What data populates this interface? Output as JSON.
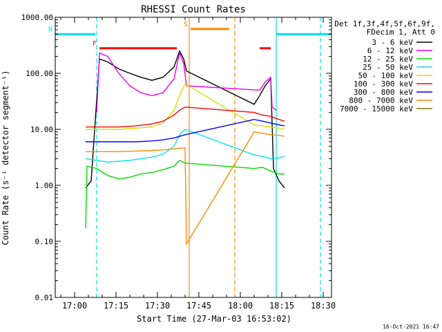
{
  "chart_data": {
    "type": "line",
    "title": "RHESSI Count Rates",
    "xlabel": "Start Time (27-Mar-03 16:53:02)",
    "ylabel": "Count Rate (s⁻¹ detector segment⁻¹)",
    "yscale": "log",
    "xlim": [
      "16:53:00",
      "18:33:00"
    ],
    "ylim": [
      0.01,
      1000
    ],
    "x_ticks": [
      "17:00",
      "17:15",
      "17:30",
      "17:45",
      "18:00",
      "18:15",
      "18:30"
    ],
    "y_ticks": [
      "0.01",
      "0.10",
      "1.00",
      "10.00",
      "100.00",
      "1000.00"
    ],
    "grid": false,
    "legend_position": "top-right outside",
    "legend_header": [
      "Det 1f,3f,4f,5f,6f,9f,",
      "FDecim 1, Att 0"
    ],
    "timestamp": "16-Oct-2021 16:47",
    "series": [
      {
        "name": "3 - 6 keV",
        "color": "#000000",
        "points": [
          [
            "17:04:00",
            0.9
          ],
          [
            "17:06:00",
            1.2
          ],
          [
            "17:09:00",
            180
          ],
          [
            "17:12:00",
            160
          ],
          [
            "17:16:00",
            120
          ],
          [
            "17:20:00",
            100
          ],
          [
            "17:24:00",
            85
          ],
          [
            "17:28:00",
            75
          ],
          [
            "17:32:00",
            85
          ],
          [
            "17:36:00",
            130
          ],
          [
            "17:38:00",
            250
          ],
          [
            "17:39:30",
            180
          ],
          [
            "17:40:30",
            110
          ],
          [
            "18:05:00",
            28
          ],
          [
            "18:07:00",
            40
          ],
          [
            "18:09:00",
            60
          ],
          [
            "18:11:00",
            80
          ],
          [
            "18:12:00",
            2.0
          ],
          [
            "18:14:00",
            1.2
          ],
          [
            "18:16:00",
            0.9
          ]
        ]
      },
      {
        "name": "6 - 12 keV",
        "color": "#ee00ee",
        "points": [
          [
            "17:08:00",
            20
          ],
          [
            "17:09:00",
            230
          ],
          [
            "17:12:00",
            200
          ],
          [
            "17:16:00",
            100
          ],
          [
            "17:20:00",
            60
          ],
          [
            "17:24:00",
            45
          ],
          [
            "17:28:00",
            40
          ],
          [
            "17:32:00",
            45
          ],
          [
            "17:36:00",
            80
          ],
          [
            "17:38:00",
            230
          ],
          [
            "17:39:30",
            150
          ],
          [
            "17:40:30",
            60
          ],
          [
            "18:07:00",
            50
          ],
          [
            "18:09:00",
            70
          ],
          [
            "18:11:00",
            85
          ],
          [
            "18:11:30",
            25
          ],
          [
            "18:13:00",
            22
          ]
        ]
      },
      {
        "name": "12 - 25 keV",
        "color": "#00dd00",
        "points": [
          [
            "17:04:00",
            0.17
          ],
          [
            "17:04:30",
            2.2
          ],
          [
            "17:08:00",
            2.0
          ],
          [
            "17:12:00",
            1.5
          ],
          [
            "17:16:00",
            1.3
          ],
          [
            "17:20:00",
            1.4
          ],
          [
            "17:24:00",
            1.6
          ],
          [
            "17:28:00",
            1.7
          ],
          [
            "17:32:00",
            1.9
          ],
          [
            "17:36:00",
            2.2
          ],
          [
            "17:38:00",
            2.8
          ],
          [
            "17:40:00",
            2.5
          ],
          [
            "18:05:00",
            2.0
          ],
          [
            "18:08:00",
            2.1
          ],
          [
            "18:11:00",
            1.8
          ],
          [
            "18:14:00",
            1.6
          ],
          [
            "18:16:00",
            1.6
          ]
        ]
      },
      {
        "name": "25 - 50 keV",
        "color": "#00e5e5",
        "points": [
          [
            "17:04:00",
            3.0
          ],
          [
            "17:08:00",
            2.8
          ],
          [
            "17:12:00",
            2.6
          ],
          [
            "17:16:00",
            2.7
          ],
          [
            "17:20:00",
            2.8
          ],
          [
            "17:24:00",
            3.0
          ],
          [
            "17:28:00",
            3.2
          ],
          [
            "17:32:00",
            3.6
          ],
          [
            "17:36:00",
            5.0
          ],
          [
            "17:38:00",
            8.0
          ],
          [
            "17:40:00",
            10
          ],
          [
            "18:05:00",
            3.5
          ],
          [
            "18:08:00",
            3.3
          ],
          [
            "18:11:00",
            3.0
          ],
          [
            "18:14:00",
            3.1
          ],
          [
            "18:16:00",
            3.3
          ]
        ]
      },
      {
        "name": "50 - 100 keV",
        "color": "#dddd00",
        "points": [
          [
            "17:04:00",
            10
          ],
          [
            "17:10:00",
            10
          ],
          [
            "17:16:00",
            10
          ],
          [
            "17:22:00",
            10.5
          ],
          [
            "17:28:00",
            11
          ],
          [
            "17:32:00",
            13
          ],
          [
            "17:36:00",
            22
          ],
          [
            "17:38:00",
            40
          ],
          [
            "17:40:00",
            65
          ],
          [
            "18:05:00",
            12
          ],
          [
            "18:08:00",
            11.5
          ],
          [
            "18:11:00",
            11
          ],
          [
            "18:14:00",
            10.5
          ],
          [
            "18:16:00",
            10
          ]
        ]
      },
      {
        "name": "100 - 300 keV",
        "color": "#ff0000",
        "points": [
          [
            "17:04:00",
            11
          ],
          [
            "17:10:00",
            11
          ],
          [
            "17:16:00",
            11
          ],
          [
            "17:22:00",
            11.5
          ],
          [
            "17:28:00",
            12.5
          ],
          [
            "17:32:00",
            14
          ],
          [
            "17:36:00",
            18
          ],
          [
            "17:38:00",
            22
          ],
          [
            "17:40:00",
            25
          ],
          [
            "18:05:00",
            20
          ],
          [
            "18:08:00",
            18
          ],
          [
            "18:11:00",
            17
          ],
          [
            "18:14:00",
            15
          ],
          [
            "18:16:00",
            14
          ]
        ]
      },
      {
        "name": "300 - 800 keV",
        "color": "#0000ff",
        "points": [
          [
            "17:04:00",
            6.0
          ],
          [
            "17:10:00",
            6.0
          ],
          [
            "17:16:00",
            6.0
          ],
          [
            "17:22:00",
            6.0
          ],
          [
            "17:28:00",
            6.2
          ],
          [
            "17:32:00",
            6.5
          ],
          [
            "17:36:00",
            7.0
          ],
          [
            "17:38:00",
            7.5
          ],
          [
            "17:40:00",
            8.0
          ],
          [
            "18:05:00",
            15
          ],
          [
            "18:08:00",
            14
          ],
          [
            "18:11:00",
            13
          ],
          [
            "18:14:00",
            12
          ],
          [
            "18:16:00",
            11.5
          ]
        ]
      },
      {
        "name": "800 - 7000 keV",
        "color": "#ff8800",
        "points": [
          [
            "17:04:00",
            4.0
          ],
          [
            "17:10:00",
            4.0
          ],
          [
            "17:16:00",
            4.0
          ],
          [
            "17:22:00",
            4.1
          ],
          [
            "17:28:00",
            4.2
          ],
          [
            "17:32:00",
            4.3
          ],
          [
            "17:36:00",
            4.5
          ],
          [
            "17:38:00",
            4.6
          ],
          [
            "17:40:00",
            4.7
          ],
          [
            "17:40:30",
            0.09
          ],
          [
            "18:05:00",
            9.0
          ],
          [
            "18:08:00",
            8.5
          ],
          [
            "18:11:00",
            8.0
          ],
          [
            "18:14:00",
            7.8
          ],
          [
            "18:16:00",
            7.5
          ]
        ]
      },
      {
        "name": "7000 - 15000 keV",
        "color": "#808000",
        "points": []
      }
    ],
    "annotations": {
      "flags": [
        {
          "label": "N",
          "color": "#00e5e5",
          "segments": [
            [
              "16:53:00",
              "17:07:30"
            ],
            [
              "18:13:00",
              "18:33:00"
            ]
          ],
          "level": 500
        },
        {
          "label": "F",
          "color": "#ff0000",
          "segments": [
            [
              "17:09:00",
              "17:37:00"
            ],
            [
              "18:07:00",
              "18:11:00"
            ]
          ],
          "level": 280
        },
        {
          "label": "S",
          "color": "#ff8800",
          "segments": [
            [
              "17:42:00",
              "17:56:00"
            ]
          ],
          "level": 620
        }
      ],
      "vlines": [
        {
          "time": "16:53:00",
          "color": "#00e5e5",
          "style": "solid"
        },
        {
          "time": "17:08:00",
          "color": "#00e5e5",
          "style": "dashed"
        },
        {
          "time": "17:41:30",
          "color": "#ff8800",
          "style": "solid"
        },
        {
          "time": "17:58:00",
          "color": "#ff8800",
          "style": "dashed"
        },
        {
          "time": "18:13:00",
          "color": "#00e5e5",
          "style": "solid"
        },
        {
          "time": "18:29:00",
          "color": "#00e5e5",
          "style": "dashed"
        }
      ]
    }
  }
}
